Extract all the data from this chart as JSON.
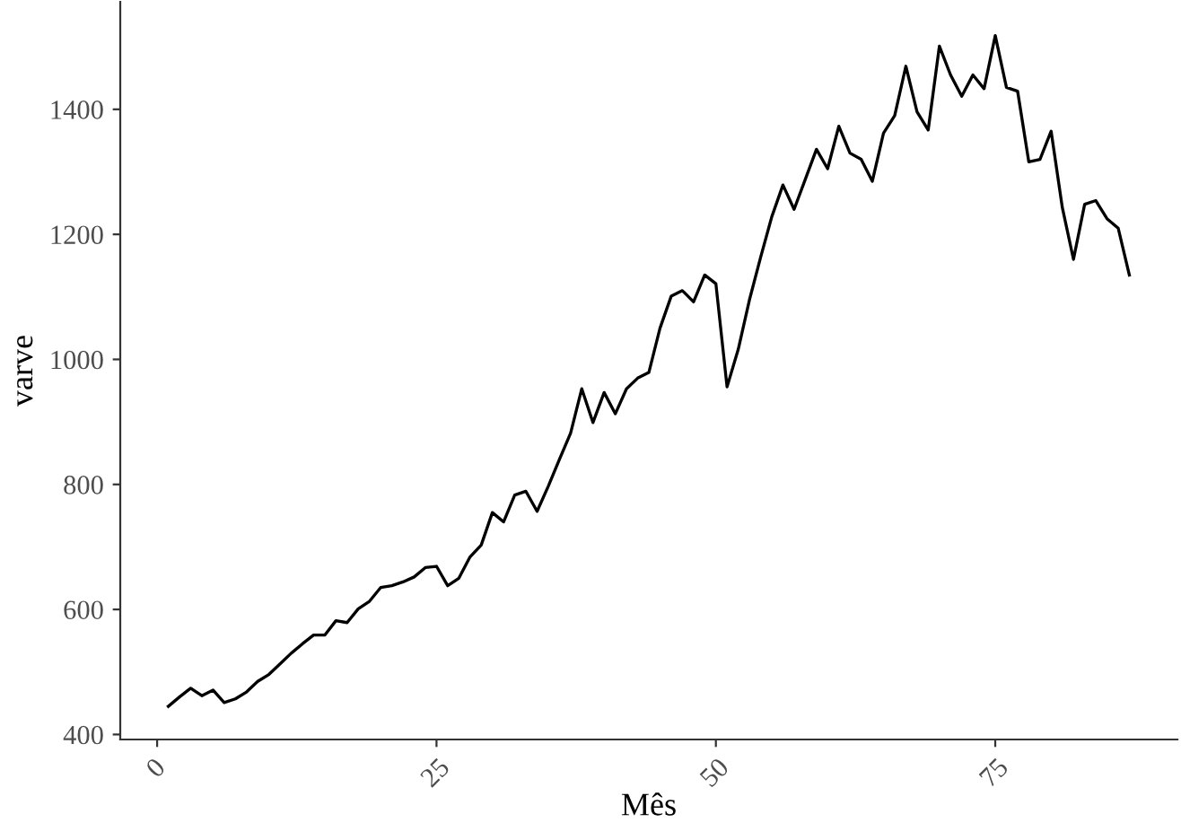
{
  "chart_data": {
    "type": "line",
    "xlabel": "Mês",
    "ylabel": "varve",
    "x": [
      1,
      2,
      3,
      4,
      5,
      6,
      7,
      8,
      9,
      10,
      11,
      12,
      13,
      14,
      15,
      16,
      17,
      18,
      19,
      20,
      21,
      22,
      23,
      24,
      25,
      26,
      27,
      28,
      29,
      30,
      31,
      32,
      33,
      34,
      35,
      36,
      37,
      38,
      39,
      40,
      41,
      42,
      43,
      44,
      45,
      46,
      47,
      48,
      49,
      50,
      51,
      52,
      53,
      54,
      55,
      56,
      57,
      58,
      59,
      60,
      61,
      62,
      63,
      64,
      65,
      66,
      67,
      68,
      69,
      70,
      71,
      72,
      73,
      74,
      75,
      76,
      77,
      78,
      79,
      80,
      81,
      82,
      83,
      84,
      85,
      86,
      87
    ],
    "series": [
      {
        "color": "#000000",
        "values": [
          445,
          460,
          474,
          462,
          471,
          451,
          457,
          468,
          485,
          496,
          513,
          530,
          545,
          559,
          559,
          582,
          579,
          601,
          613,
          635,
          638,
          644,
          652,
          667,
          669,
          638,
          650,
          684,
          703,
          755,
          740,
          783,
          789,
          757,
          797,
          840,
          882,
          953,
          899,
          947,
          913,
          953,
          970,
          979,
          1050,
          1101,
          1110,
          1092,
          1135,
          1121,
          956,
          1016,
          1095,
          1163,
          1228,
          1279,
          1240,
          1288,
          1336,
          1305,
          1373,
          1330,
          1320,
          1285,
          1362,
          1390,
          1469,
          1396,
          1367,
          1501,
          1455,
          1421,
          1455,
          1433,
          1518,
          1435,
          1429,
          1316,
          1320,
          1365,
          1243,
          1160,
          1248,
          1254,
          1225,
          1210,
          1135
        ]
      }
    ],
    "xlim": [
      -3.3,
      91.3
    ],
    "ylim": [
      392,
      1572
    ],
    "xticks": [
      0,
      25,
      50,
      75
    ],
    "yticks": [
      400,
      600,
      800,
      1000,
      1200,
      1400
    ],
    "grid": false,
    "legend": false,
    "marker": "none",
    "line_style": "solid"
  }
}
